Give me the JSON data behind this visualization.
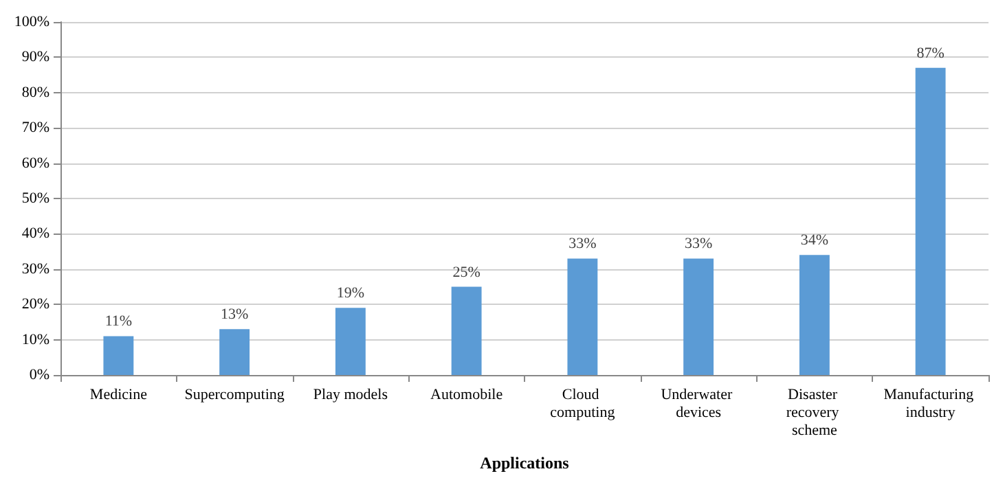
{
  "chart_data": {
    "type": "bar",
    "xlabel": "Applications",
    "categories": [
      "Medicine",
      "Supercomputing",
      "Play models",
      "Automobile",
      "Cloud computing",
      "Underwater devices",
      "Disaster recovery scheme",
      "Manufacturing industry"
    ],
    "values": [
      11,
      13,
      19,
      25,
      33,
      33,
      34,
      87
    ],
    "value_labels": [
      "11%",
      "13%",
      "19%",
      "25%",
      "33%",
      "33%",
      "34%",
      "87%"
    ],
    "color": "#5b9bd5",
    "ylim": [
      0,
      100
    ],
    "yticks": [
      {
        "value": 0,
        "label": "0%"
      },
      {
        "value": 10,
        "label": "10%"
      },
      {
        "value": 20,
        "label": "20%"
      },
      {
        "value": 30,
        "label": "30%"
      },
      {
        "value": 40,
        "label": "40%"
      },
      {
        "value": 50,
        "label": "50%"
      },
      {
        "value": 60,
        "label": "60%"
      },
      {
        "value": 70,
        "label": "70%"
      },
      {
        "value": 80,
        "label": "80%"
      },
      {
        "value": 90,
        "label": "90%"
      },
      {
        "value": 100,
        "label": "100%"
      }
    ],
    "grid": "y"
  }
}
